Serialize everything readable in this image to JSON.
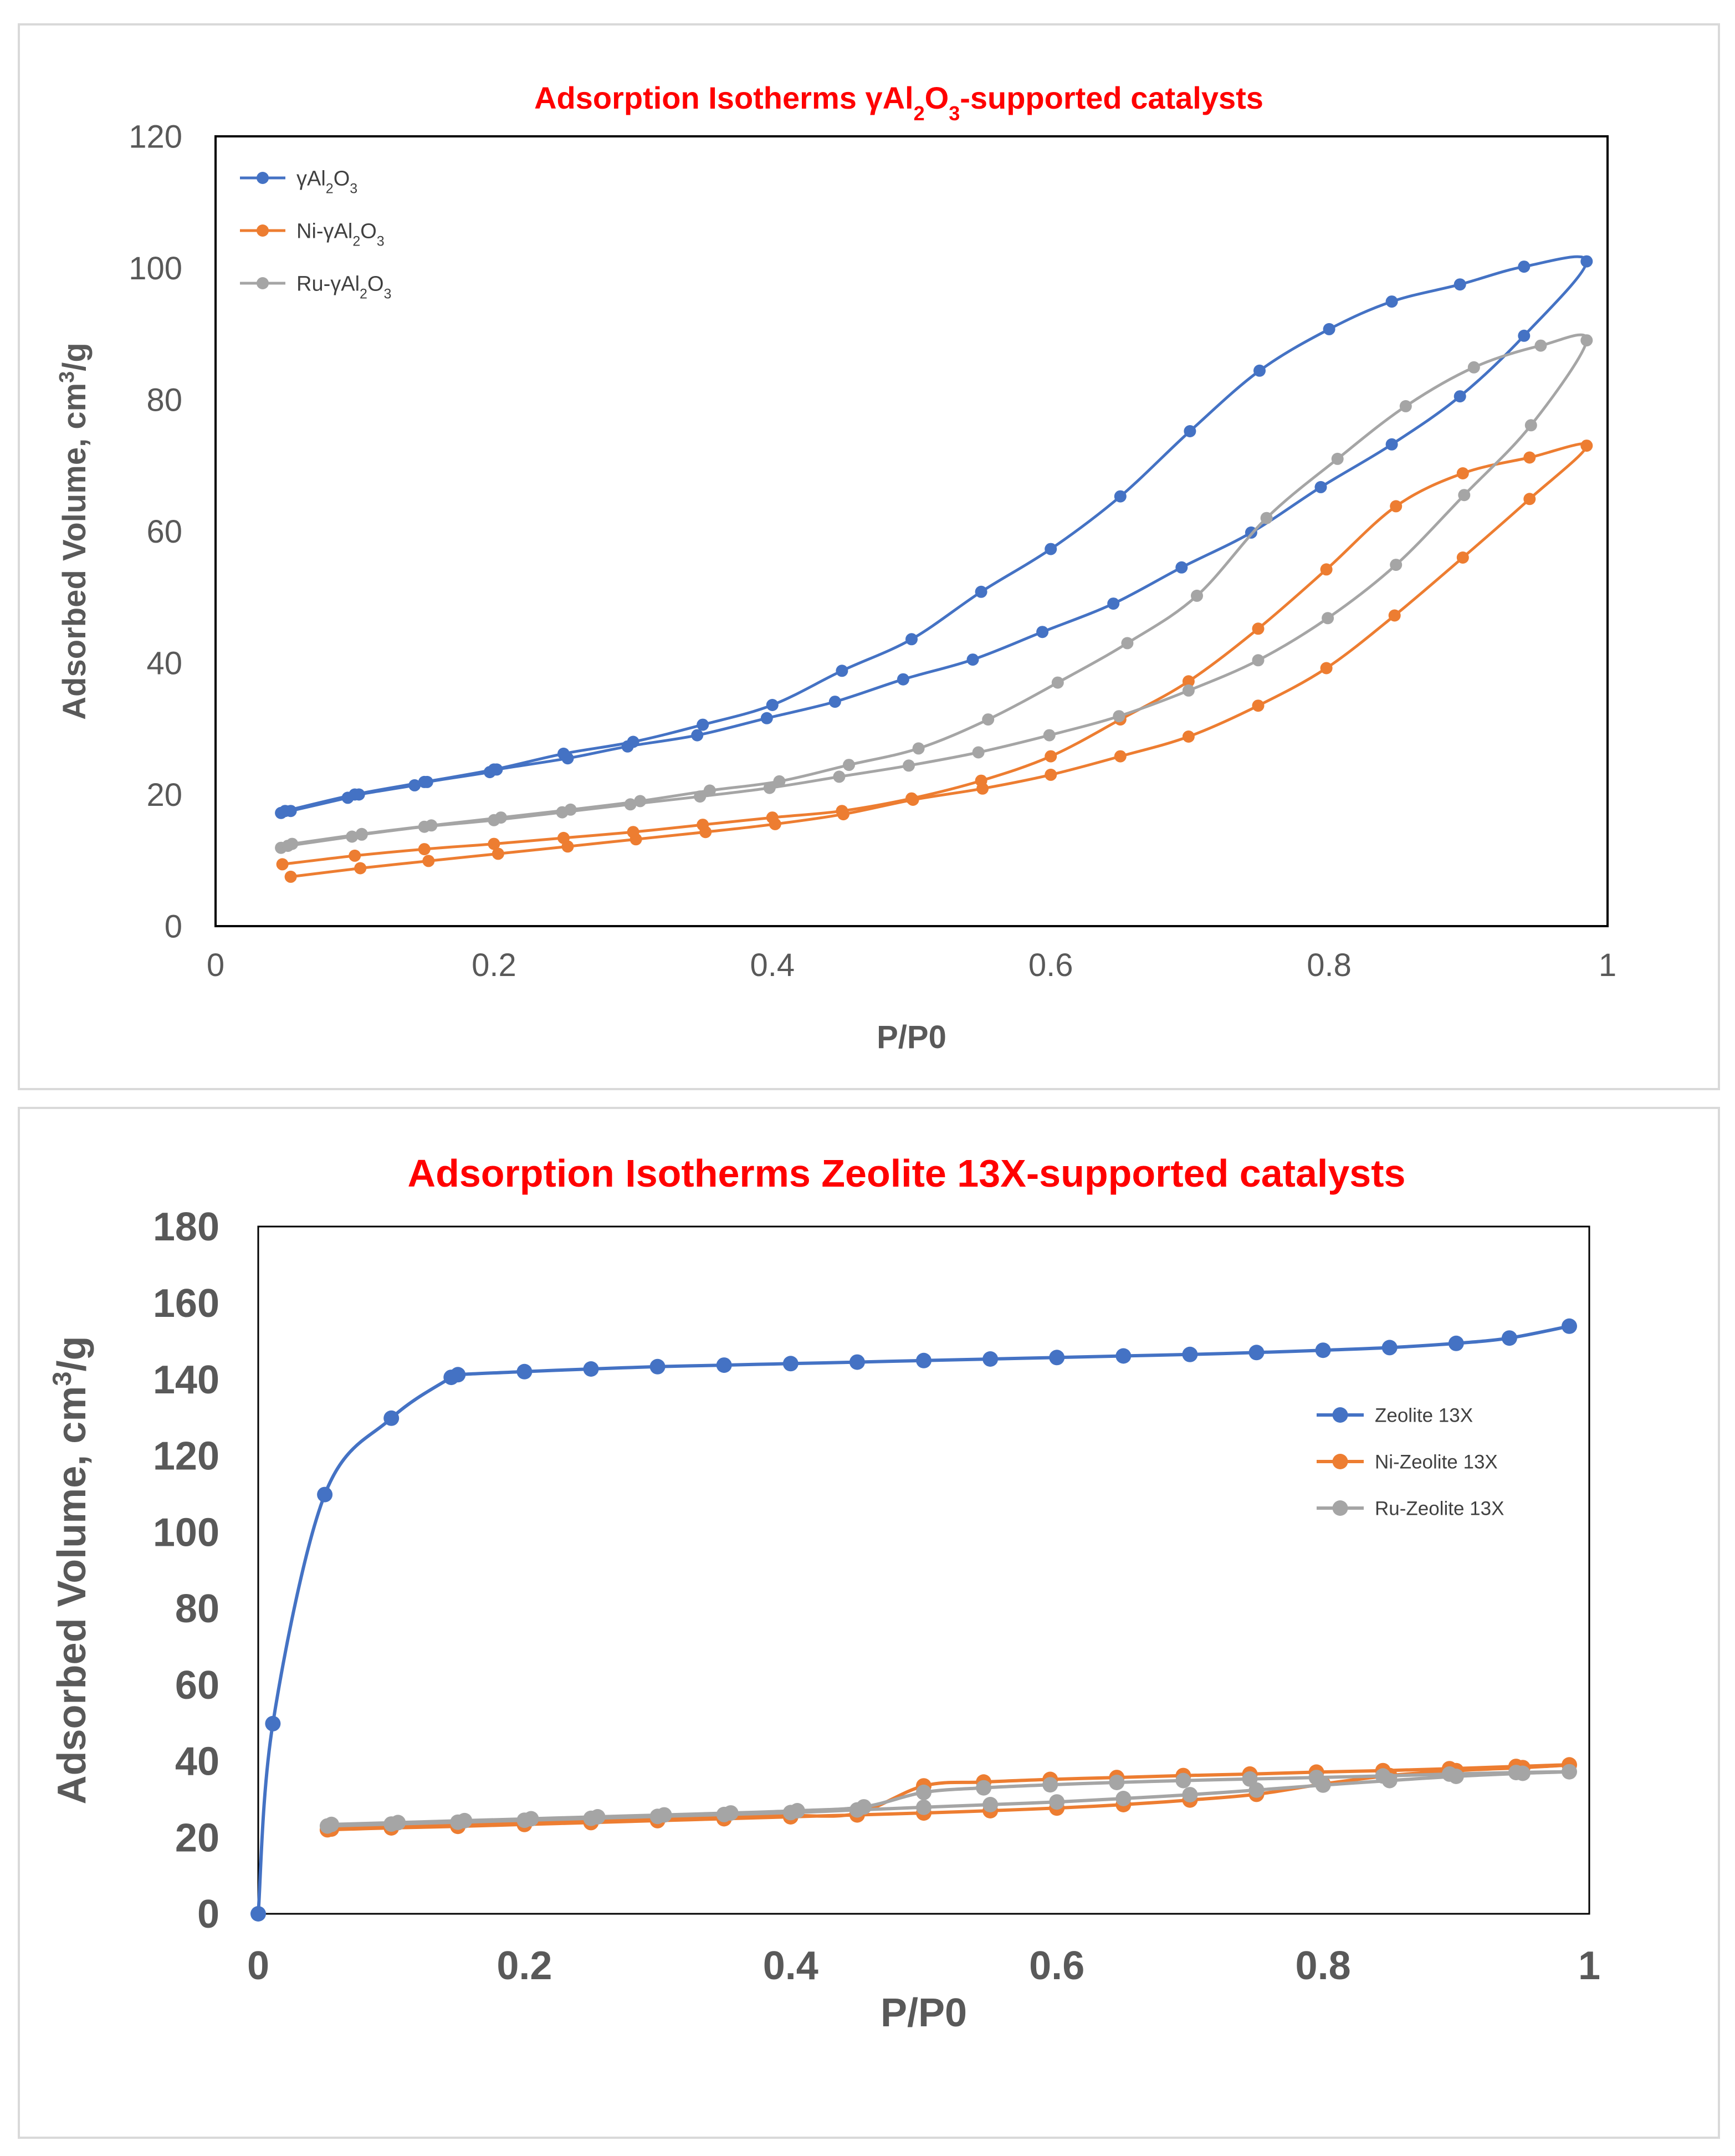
{
  "chart_data": [
    {
      "type": "line",
      "title": "Adsorption Isotherms γAl₂O₃-supported catalysts",
      "title_parts": [
        {
          "text": "Adsorption Isotherms γAl",
          "sub": false
        },
        {
          "text": "2",
          "sub": true
        },
        {
          "text": "O",
          "sub": false
        },
        {
          "text": "3",
          "sub": true
        },
        {
          "text": "-supported catalysts",
          "sub": false
        }
      ],
      "xlabel": "P/P0",
      "ylabel": "Adsorbed Volume, cm³/g",
      "ylabel_parts": [
        {
          "text": "Adsorbed Volume, cm",
          "sup": false
        },
        {
          "text": "3",
          "sup": true
        },
        {
          "text": "/g",
          "sup": false
        }
      ],
      "xlim": [
        0,
        1
      ],
      "ylim": [
        0,
        120
      ],
      "xticks": [
        "0",
        "0.2",
        "0.4",
        "0.6",
        "0.8",
        "1"
      ],
      "yticks": [
        "0",
        "20",
        "40",
        "60",
        "80",
        "100",
        "120"
      ],
      "legend_position": "top-left",
      "series": [
        {
          "name": "γAl₂O₃",
          "legend_parts": [
            {
              "text": "γAl",
              "sub": false
            },
            {
              "text": "2",
              "sub": true
            },
            {
              "text": "O",
              "sub": false
            },
            {
              "text": "3",
              "sub": true
            }
          ],
          "color": "#4472c4",
          "x": [
            0.047,
            0.054,
            0.095,
            0.103,
            0.143,
            0.152,
            0.197,
            0.202,
            0.253,
            0.296,
            0.346,
            0.396,
            0.445,
            0.494,
            0.544,
            0.594,
            0.645,
            0.694,
            0.744,
            0.794,
            0.845,
            0.894,
            0.94,
            0.985,
            0.94,
            0.894,
            0.845,
            0.8,
            0.75,
            0.7,
            0.65,
            0.6,
            0.55,
            0.5,
            0.45,
            0.4,
            0.35,
            0.3,
            0.25,
            0.2,
            0.15,
            0.1,
            0.05
          ],
          "y": [
            17.2,
            17.5,
            19.5,
            20.0,
            21.4,
            21.9,
            23.4,
            23.8,
            25.5,
            27.3,
            29.0,
            31.6,
            34.1,
            37.5,
            40.5,
            44.7,
            49.0,
            54.5,
            59.8,
            66.7,
            73.2,
            80.5,
            89.7,
            101.0,
            100.2,
            97.5,
            94.9,
            90.7,
            84.4,
            75.2,
            65.3,
            57.3,
            50.8,
            43.6,
            38.8,
            33.6,
            30.6,
            28.0,
            26.2,
            23.8,
            21.9,
            20.0,
            17.5
          ]
        },
        {
          "name": "Ni-γAl₂O₃",
          "legend_parts": [
            {
              "text": "Ni-γAl",
              "sub": false
            },
            {
              "text": "2",
              "sub": true
            },
            {
              "text": "O",
              "sub": false
            },
            {
              "text": "3",
              "sub": true
            }
          ],
          "color": "#ed7d31",
          "x": [
            0.054,
            0.104,
            0.153,
            0.203,
            0.253,
            0.302,
            0.352,
            0.402,
            0.451,
            0.501,
            0.551,
            0.6,
            0.65,
            0.699,
            0.749,
            0.798,
            0.847,
            0.896,
            0.944,
            0.985,
            0.944,
            0.896,
            0.848,
            0.798,
            0.749,
            0.699,
            0.65,
            0.6,
            0.55,
            0.5,
            0.45,
            0.4,
            0.35,
            0.3,
            0.25,
            0.2,
            0.15,
            0.1,
            0.048
          ],
          "y": [
            7.5,
            8.8,
            9.9,
            11.0,
            12.1,
            13.2,
            14.3,
            15.5,
            17.0,
            19.2,
            20.9,
            23.0,
            25.8,
            28.8,
            33.5,
            39.2,
            47.2,
            56.0,
            64.9,
            73.0,
            71.2,
            68.8,
            63.8,
            54.2,
            45.2,
            37.2,
            31.4,
            25.8,
            22.1,
            19.4,
            17.5,
            16.5,
            15.4,
            14.3,
            13.4,
            12.5,
            11.7,
            10.7,
            9.4
          ]
        },
        {
          "name": "Ru-γAl₂O₃",
          "legend_parts": [
            {
              "text": "Ru-γAl",
              "sub": false
            },
            {
              "text": "2",
              "sub": true
            },
            {
              "text": "O",
              "sub": false
            },
            {
              "text": "3",
              "sub": true
            }
          ],
          "color": "#a5a5a5",
          "x": [
            0.047,
            0.052,
            0.098,
            0.105,
            0.15,
            0.2,
            0.249,
            0.298,
            0.348,
            0.398,
            0.448,
            0.498,
            0.548,
            0.599,
            0.649,
            0.699,
            0.749,
            0.799,
            0.848,
            0.897,
            0.945,
            0.985,
            0.952,
            0.904,
            0.855,
            0.806,
            0.755,
            0.705,
            0.655,
            0.605,
            0.555,
            0.505,
            0.455,
            0.405,
            0.355,
            0.305,
            0.255,
            0.205,
            0.155,
            0.105,
            0.055
          ],
          "y": [
            11.9,
            12.2,
            13.6,
            13.9,
            15.1,
            16.1,
            17.3,
            18.5,
            19.7,
            21.0,
            22.7,
            24.4,
            26.4,
            29.0,
            31.9,
            35.8,
            40.4,
            46.8,
            54.9,
            65.5,
            76.1,
            89.0,
            88.2,
            84.9,
            79.0,
            71.0,
            62.0,
            50.2,
            43.0,
            37.0,
            31.4,
            27.0,
            24.5,
            22.0,
            20.6,
            19.0,
            17.7,
            16.5,
            15.3,
            14.0,
            12.5
          ]
        }
      ]
    },
    {
      "type": "line",
      "title": "Adsorption Isotherms Zeolite 13X-supported catalysts",
      "xlabel": "P/P0",
      "ylabel": "Adsorbed Volume, cm³/g",
      "ylabel_parts": [
        {
          "text": "Adsorbed Volume, cm",
          "sup": false
        },
        {
          "text": "3",
          "sup": true
        },
        {
          "text": "/g",
          "sup": false
        }
      ],
      "xlim": [
        0,
        1
      ],
      "ylim": [
        0,
        180
      ],
      "xticks": [
        "0",
        "0.2",
        "0.4",
        "0.6",
        "0.8",
        "1"
      ],
      "yticks": [
        "0",
        "20",
        "40",
        "60",
        "80",
        "100",
        "120",
        "140",
        "160",
        "180"
      ],
      "legend_position": "right",
      "series": [
        {
          "name": "Zeolite 13X",
          "color": "#4472c4",
          "x": [
            0.0,
            0.011,
            0.05,
            0.1,
            0.145,
            0.15,
            0.2,
            0.25,
            0.3,
            0.35,
            0.4,
            0.45,
            0.5,
            0.55,
            0.6,
            0.65,
            0.7,
            0.75,
            0.8,
            0.85,
            0.9,
            0.94,
            0.985
          ],
          "y": [
            0.0,
            49.8,
            109.8,
            129.8,
            140.5,
            141.2,
            142.0,
            142.7,
            143.3,
            143.7,
            144.1,
            144.5,
            144.9,
            145.3,
            145.7,
            146.1,
            146.5,
            147.0,
            147.6,
            148.3,
            149.4,
            150.8,
            153.9
          ]
        },
        {
          "name": "Ni-Zeolite 13X",
          "color": "#ed7d31",
          "x": [
            0.052,
            0.1,
            0.15,
            0.2,
            0.25,
            0.3,
            0.35,
            0.4,
            0.45,
            0.5,
            0.55,
            0.6,
            0.65,
            0.7,
            0.75,
            0.8,
            0.85,
            0.9,
            0.95,
            0.985,
            0.945,
            0.895,
            0.845,
            0.795,
            0.745,
            0.695,
            0.645,
            0.595,
            0.545,
            0.5,
            0.45,
            0.4,
            0.35,
            0.3,
            0.25,
            0.2,
            0.15,
            0.1,
            0.055
          ],
          "y": [
            22.0,
            22.5,
            22.9,
            23.4,
            23.9,
            24.4,
            24.9,
            25.4,
            25.9,
            26.4,
            27.0,
            27.7,
            28.6,
            29.8,
            31.3,
            34.0,
            36.2,
            37.5,
            38.3,
            39.0,
            38.6,
            38.0,
            37.5,
            37.1,
            36.6,
            36.2,
            35.7,
            35.2,
            34.5,
            33.5,
            26.3,
            25.7,
            25.2,
            24.7,
            24.2,
            23.7,
            23.2,
            22.7,
            22.2
          ]
        },
        {
          "name": "Ru-Zeolite 13X",
          "color": "#a5a5a5",
          "x": [
            0.052,
            0.1,
            0.15,
            0.2,
            0.25,
            0.3,
            0.35,
            0.4,
            0.45,
            0.5,
            0.55,
            0.6,
            0.65,
            0.7,
            0.75,
            0.8,
            0.85,
            0.9,
            0.95,
            0.985,
            0.945,
            0.895,
            0.845,
            0.795,
            0.745,
            0.695,
            0.645,
            0.595,
            0.545,
            0.5,
            0.455,
            0.405,
            0.355,
            0.305,
            0.255,
            0.205,
            0.155,
            0.105,
            0.055
          ],
          "y": [
            23.0,
            23.5,
            24.0,
            24.5,
            25.0,
            25.5,
            26.0,
            26.5,
            27.2,
            27.9,
            28.6,
            29.3,
            30.2,
            31.2,
            32.4,
            33.7,
            34.9,
            36.0,
            36.8,
            37.2,
            37.0,
            36.6,
            36.1,
            35.7,
            35.3,
            34.9,
            34.4,
            33.8,
            33.0,
            31.8,
            28.0,
            27.0,
            26.4,
            25.9,
            25.4,
            24.9,
            24.4,
            23.9,
            23.4
          ]
        }
      ]
    }
  ]
}
